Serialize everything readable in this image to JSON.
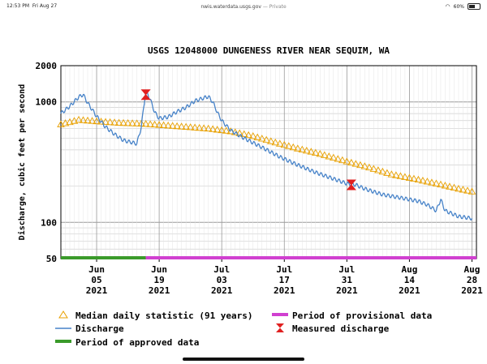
{
  "status_bar": {
    "time": "12:53 PM",
    "date": "Fri Aug 27",
    "url": "nwis.waterdata.usgs.gov",
    "url_suffix": " — Private",
    "battery": "60%",
    "battery_level": 0.6
  },
  "chart_data": {
    "type": "line",
    "title": "USGS 12048000 DUNGENESS RIVER NEAR SEQUIM, WA",
    "ylabel": "Discharge, cubic feet per second",
    "yscale": "log",
    "ylim": [
      50,
      2000
    ],
    "xlim": [
      "2021-05-28",
      "2021-08-29"
    ],
    "grid": true,
    "y_ticks": [
      "50",
      "100",
      "1000",
      "2000"
    ],
    "x_ticks": [
      {
        "date": "2021-06-05",
        "line1": "Jun",
        "line2": "05",
        "line3": "2021"
      },
      {
        "date": "2021-06-19",
        "line1": "Jun",
        "line2": "19",
        "line3": "2021"
      },
      {
        "date": "2021-07-03",
        "line1": "Jul",
        "line2": "03",
        "line3": "2021"
      },
      {
        "date": "2021-07-17",
        "line1": "Jul",
        "line2": "17",
        "line3": "2021"
      },
      {
        "date": "2021-07-31",
        "line1": "Jul",
        "line2": "31",
        "line3": "2021"
      },
      {
        "date": "2021-08-14",
        "line1": "Aug",
        "line2": "14",
        "line3": "2021"
      },
      {
        "date": "2021-08-28",
        "line1": "Aug",
        "line2": "28",
        "line3": "2021"
      }
    ],
    "series": [
      {
        "name": "Discharge",
        "color": "#4682c8",
        "points": [
          [
            "2021-05-28",
            800
          ],
          [
            "2021-05-30",
            920
          ],
          [
            "2021-06-01",
            1100
          ],
          [
            "2021-06-02",
            1150
          ],
          [
            "2021-06-03",
            980
          ],
          [
            "2021-06-05",
            760
          ],
          [
            "2021-06-07",
            620
          ],
          [
            "2021-06-09",
            540
          ],
          [
            "2021-06-11",
            480
          ],
          [
            "2021-06-13",
            460
          ],
          [
            "2021-06-14",
            450
          ],
          [
            "2021-06-15",
            620
          ],
          [
            "2021-06-16",
            1250
          ],
          [
            "2021-06-17",
            1050
          ],
          [
            "2021-06-18",
            820
          ],
          [
            "2021-06-19",
            730
          ],
          [
            "2021-06-21",
            750
          ],
          [
            "2021-06-23",
            830
          ],
          [
            "2021-06-25",
            900
          ],
          [
            "2021-06-27",
            1020
          ],
          [
            "2021-06-29",
            1080
          ],
          [
            "2021-06-30",
            1110
          ],
          [
            "2021-07-01",
            1000
          ],
          [
            "2021-07-02",
            820
          ],
          [
            "2021-07-03",
            700
          ],
          [
            "2021-07-05",
            580
          ],
          [
            "2021-07-08",
            500
          ],
          [
            "2021-07-12",
            420
          ],
          [
            "2021-07-16",
            350
          ],
          [
            "2021-07-20",
            300
          ],
          [
            "2021-07-24",
            260
          ],
          [
            "2021-07-28",
            230
          ],
          [
            "2021-07-31",
            210
          ],
          [
            "2021-08-02",
            205
          ],
          [
            "2021-08-04",
            190
          ],
          [
            "2021-08-08",
            170
          ],
          [
            "2021-08-12",
            160
          ],
          [
            "2021-08-16",
            150
          ],
          [
            "2021-08-18",
            140
          ],
          [
            "2021-08-20",
            125
          ],
          [
            "2021-08-21",
            155
          ],
          [
            "2021-08-22",
            125
          ],
          [
            "2021-08-25",
            112
          ],
          [
            "2021-08-28",
            108
          ]
        ]
      },
      {
        "name": "Median daily statistic (91 years)",
        "color": "#e8a000",
        "points": [
          [
            "2021-05-28",
            650
          ],
          [
            "2021-06-01",
            710
          ],
          [
            "2021-06-05",
            690
          ],
          [
            "2021-06-10",
            670
          ],
          [
            "2021-06-15",
            660
          ],
          [
            "2021-06-20",
            640
          ],
          [
            "2021-06-25",
            620
          ],
          [
            "2021-06-30",
            600
          ],
          [
            "2021-07-05",
            570
          ],
          [
            "2021-07-10",
            520
          ],
          [
            "2021-07-15",
            460
          ],
          [
            "2021-07-20",
            410
          ],
          [
            "2021-07-25",
            370
          ],
          [
            "2021-07-31",
            320
          ],
          [
            "2021-08-05",
            285
          ],
          [
            "2021-08-10",
            250
          ],
          [
            "2021-08-15",
            230
          ],
          [
            "2021-08-20",
            210
          ],
          [
            "2021-08-25",
            190
          ],
          [
            "2021-08-28",
            180
          ]
        ]
      },
      {
        "name": "Measured discharge",
        "color": "#e02020",
        "points": [
          [
            "2021-06-16",
            1150
          ],
          [
            "2021-08-01",
            205
          ]
        ]
      }
    ],
    "periods": [
      {
        "name": "Period of approved data",
        "color": "#3a9a2a",
        "start": "2021-05-28",
        "end": "2021-06-16"
      },
      {
        "name": "Period of provisional data",
        "color": "#d040d0",
        "start": "2021-06-16",
        "end": "2021-08-29"
      }
    ],
    "legend": {
      "placement": "bottom",
      "items": [
        {
          "label": "Median daily statistic (91 years)",
          "symbol": "triangle",
          "color": "#e8a000"
        },
        {
          "label": "Period of provisional data",
          "symbol": "bar",
          "color": "#d040d0"
        },
        {
          "label": "Discharge",
          "symbol": "line",
          "color": "#4682c8"
        },
        {
          "label": "Measured discharge",
          "symbol": "bowtie",
          "color": "#e02020"
        },
        {
          "label": "Period of approved data",
          "symbol": "bar",
          "color": "#3a9a2a"
        }
      ]
    }
  }
}
